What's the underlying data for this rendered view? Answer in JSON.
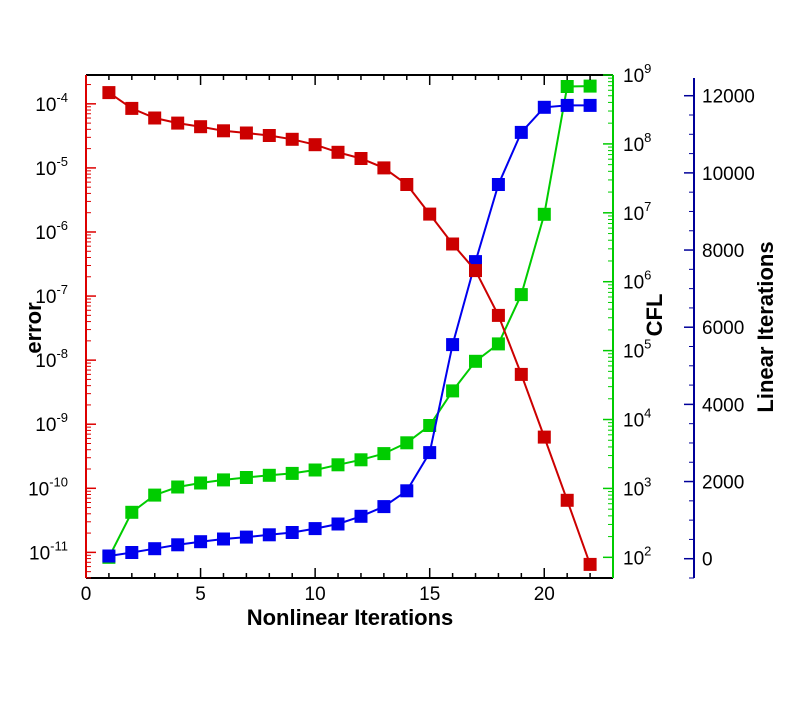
{
  "chart_data": {
    "type": "line",
    "xlabel": "Nonlinear Iterations",
    "xlim": [
      0,
      23
    ],
    "xticks": [
      0,
      5,
      10,
      15,
      20
    ],
    "axes": {
      "error": {
        "label": "error",
        "scale": "log",
        "ylim_exp": [
          -11.4,
          -3.55
        ],
        "tick_exponents": [
          -11,
          -10,
          -9,
          -8,
          -7,
          -6,
          -5,
          -4
        ],
        "color": "#dd0000"
      },
      "cfl": {
        "label": "CFL",
        "scale": "log",
        "ylim_exp": [
          1.7,
          9
        ],
        "tick_exponents": [
          2,
          3,
          4,
          5,
          6,
          7,
          8,
          9
        ],
        "color": "#00cc00"
      },
      "linear": {
        "label": "Linear Iterations",
        "scale": "linear",
        "ylim": [
          -500,
          12200
        ],
        "ticks": [
          0,
          2000,
          4000,
          6000,
          8000,
          10000,
          12000
        ],
        "color": "#000099"
      }
    },
    "series": [
      {
        "axis": "error",
        "color": "#cc0000",
        "x": [
          1,
          2,
          3,
          4,
          5,
          6,
          7,
          8,
          9,
          10,
          11,
          12,
          13,
          14,
          15,
          16,
          17,
          18,
          19,
          20,
          21,
          22
        ],
        "values": [
          0.00015,
          8.5e-05,
          6e-05,
          5e-05,
          4.4e-05,
          3.8e-05,
          3.5e-05,
          3.2e-05,
          2.8e-05,
          2.3e-05,
          1.75e-05,
          1.4e-05,
          1e-05,
          5.5e-06,
          1.9e-06,
          6.5e-07,
          2.5e-07,
          5e-08,
          6e-09,
          6.3e-10,
          6.5e-11,
          6.5e-12
        ]
      },
      {
        "axis": "cfl",
        "color": "#00cc00",
        "x": [
          1,
          2,
          3,
          4,
          5,
          6,
          7,
          8,
          9,
          10,
          11,
          12,
          13,
          14,
          15,
          16,
          17,
          18,
          19,
          20,
          21,
          22
        ],
        "values": [
          100,
          450,
          800,
          1050,
          1200,
          1330,
          1440,
          1550,
          1650,
          1850,
          2200,
          2600,
          3200,
          4600,
          8200,
          26000,
          70000,
          125000,
          650000,
          9500000,
          680000000,
          690000000
        ]
      },
      {
        "axis": "linear",
        "color": "#0000ee",
        "x": [
          1,
          2,
          3,
          4,
          5,
          6,
          7,
          8,
          9,
          10,
          11,
          12,
          13,
          14,
          15,
          16,
          17,
          18,
          19,
          20,
          21,
          22
        ],
        "values": [
          70,
          160,
          260,
          360,
          440,
          510,
          560,
          620,
          680,
          780,
          900,
          1100,
          1350,
          1760,
          2750,
          5550,
          7700,
          9700,
          11050,
          11700,
          11750,
          11750
        ]
      }
    ]
  }
}
